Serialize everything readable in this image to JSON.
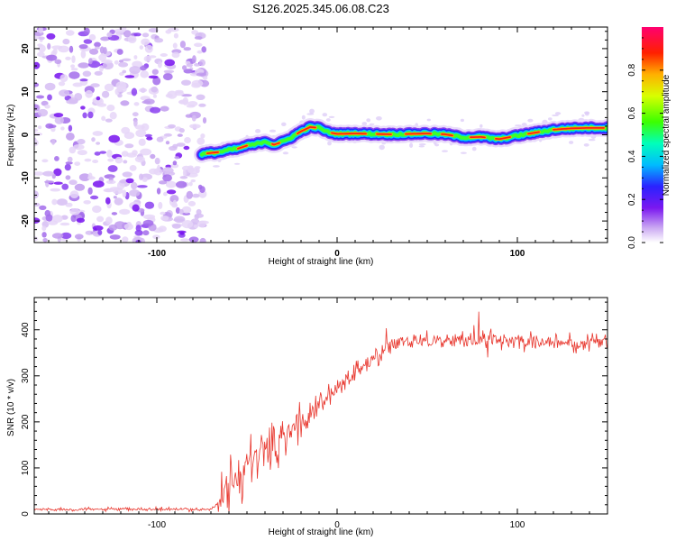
{
  "title": "S126.2025.345.06.08.C23",
  "chart_data": [
    {
      "type": "heatmap",
      "name": "spectrogram",
      "xlabel": "Height of straight line (km)",
      "ylabel": "Frequency (Hz)",
      "xlim": [
        -168,
        150
      ],
      "ylim": [
        -25,
        25
      ],
      "xticks": [
        -100,
        0,
        100
      ],
      "yticks": [
        -20,
        -10,
        0,
        10,
        20
      ],
      "noise_region_x": [
        -168,
        -72
      ],
      "signal_ridge": {
        "x": [
          -75,
          -70,
          -65,
          -60,
          -55,
          -50,
          -45,
          -40,
          -35,
          -30,
          -25,
          -20,
          -15,
          -10,
          -5,
          0,
          10,
          20,
          30,
          40,
          50,
          60,
          70,
          80,
          90,
          100,
          110,
          120,
          130,
          140,
          150
        ],
        "freq": [
          -4.5,
          -4.2,
          -4.0,
          -3.5,
          -3.2,
          -2.5,
          -2.2,
          -1.5,
          -2.3,
          -1.6,
          -0.5,
          0.8,
          1.8,
          1.6,
          0.6,
          0.2,
          0.3,
          0.2,
          0.1,
          0.2,
          0.3,
          0.1,
          -0.6,
          -0.5,
          -1.0,
          -0.2,
          0.5,
          1.2,
          1.5,
          1.6,
          1.6
        ]
      },
      "colorbar": {
        "label": "Normalized spectral amplitude",
        "ticks": [
          "0.0",
          "0.2",
          "0.4",
          "0.6",
          "0.8"
        ],
        "tick_values": [
          0.0,
          0.2,
          0.4,
          0.6,
          0.8
        ],
        "range": [
          0,
          1
        ]
      }
    },
    {
      "type": "line",
      "name": "snr",
      "xlabel": "Height of straight line (km)",
      "ylabel": "SNR (10 * v/v)",
      "xlim": [
        -168,
        150
      ],
      "ylim": [
        0,
        470
      ],
      "xticks": [
        -100,
        0,
        100
      ],
      "yticks": [
        0,
        100,
        200,
        300,
        400
      ],
      "color": "#e8372e",
      "trend": {
        "x": [
          -168,
          -100,
          -70,
          -62,
          -55,
          -45,
          -35,
          -25,
          -15,
          -5,
          5,
          15,
          25,
          35,
          45,
          60,
          80,
          100,
          120,
          150
        ],
        "y": [
          10,
          10,
          10,
          40,
          80,
          120,
          150,
          180,
          220,
          250,
          290,
          320,
          350,
          375,
          380,
          375,
          380,
          375,
          370,
          375
        ]
      }
    }
  ]
}
